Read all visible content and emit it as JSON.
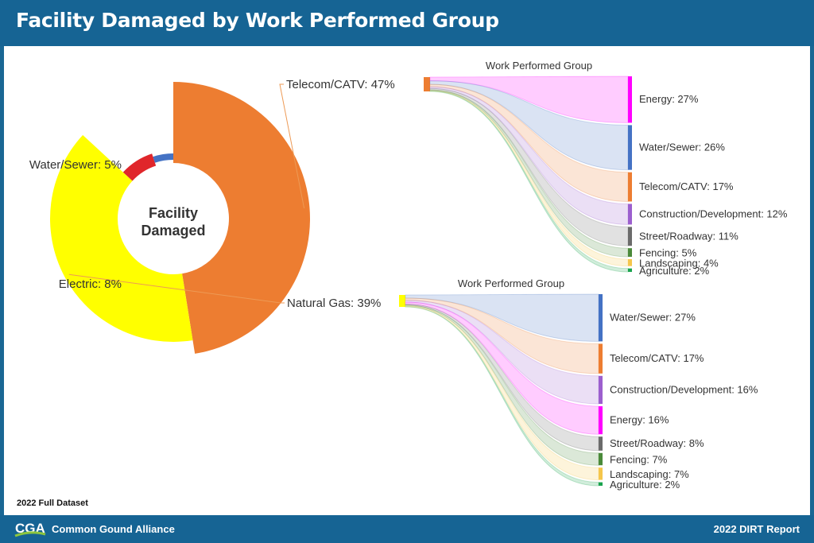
{
  "page": {
    "title": "Facility Damaged by Work Performed Group",
    "dataset_note": "2022 Full Dataset",
    "footer_org": "Common Gound Alliance",
    "footer_report": "2022 DIRT Report",
    "logo_text": "CGA"
  },
  "colors": {
    "header": "#166494",
    "Telecom/CATV": "#ed7d31",
    "Natural Gas": "#ffff00",
    "Electric": "#e0262b",
    "Water/Sewer": "#4472c4",
    "Energy": "#ff00ff",
    "Construction/Development": "#9c5fce",
    "Street/Roadway": "#6b6b6b",
    "Fencing": "#4a8a3a",
    "Landscaping": "#f5c64c",
    "Agriculture": "#19a34d"
  },
  "chart_data": [
    {
      "type": "pie",
      "title": "Facility Damaged",
      "center_label": "Facility Damaged",
      "slices": [
        {
          "label": "Telecom/CATV: 47%",
          "name": "Telecom/CATV",
          "value": 47
        },
        {
          "label": "Natural Gas: 39%",
          "name": "Natural Gas",
          "value": 39
        },
        {
          "label": "Electric: 8%",
          "name": "Electric",
          "value": 8
        },
        {
          "label": "Water/Sewer: 5%",
          "name": "Water/Sewer",
          "value": 5
        }
      ]
    },
    {
      "type": "sankey",
      "title": "Work Performed Group",
      "source": "Telecom/CATV",
      "targets": [
        {
          "label": "Energy: 27%",
          "name": "Energy",
          "value": 27
        },
        {
          "label": "Water/Sewer: 26%",
          "name": "Water/Sewer",
          "value": 26
        },
        {
          "label": "Telecom/CATV: 17%",
          "name": "Telecom/CATV",
          "value": 17
        },
        {
          "label": "Construction/Development: 12%",
          "name": "Construction/Development",
          "value": 12
        },
        {
          "label": "Street/Roadway: 11%",
          "name": "Street/Roadway",
          "value": 11
        },
        {
          "label": "Fencing: 5%",
          "name": "Fencing",
          "value": 5
        },
        {
          "label": "Landscaping: 4%",
          "name": "Landscaping",
          "value": 4
        },
        {
          "label": "Agriculture: 2%",
          "name": "Agriculture",
          "value": 2
        }
      ]
    },
    {
      "type": "sankey",
      "title": "Work Performed Group",
      "source": "Natural Gas",
      "targets": [
        {
          "label": "Water/Sewer: 27%",
          "name": "Water/Sewer",
          "value": 27
        },
        {
          "label": "Telecom/CATV: 17%",
          "name": "Telecom/CATV",
          "value": 17
        },
        {
          "label": "Construction/Development: 16%",
          "name": "Construction/Development",
          "value": 16
        },
        {
          "label": "Energy: 16%",
          "name": "Energy",
          "value": 16
        },
        {
          "label": "Street/Roadway: 8%",
          "name": "Street/Roadway",
          "value": 8
        },
        {
          "label": "Fencing: 7%",
          "name": "Fencing",
          "value": 7
        },
        {
          "label": "Landscaping: 7%",
          "name": "Landscaping",
          "value": 7
        },
        {
          "label": "Agriculture: 2%",
          "name": "Agriculture",
          "value": 2
        }
      ]
    }
  ]
}
